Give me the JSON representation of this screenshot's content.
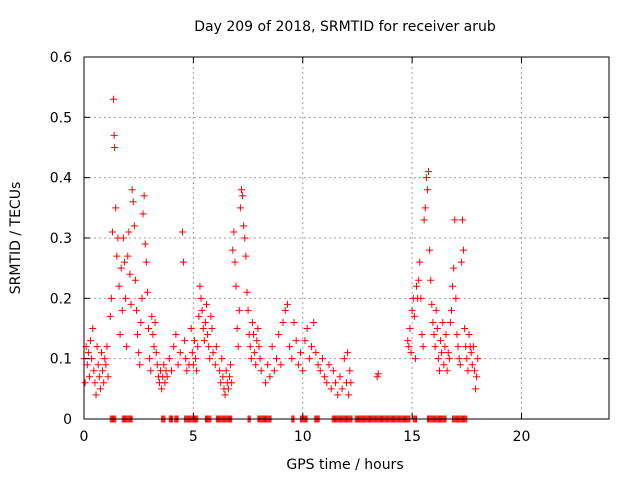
{
  "chart_data": {
    "type": "scatter",
    "title": "Day 209 of 2018, SRMTID for receiver arub",
    "xlabel": "GPS time / hours",
    "ylabel": "SRMTID / TECUs",
    "xlim": [
      0,
      24
    ],
    "ylim": [
      0,
      0.6
    ],
    "x_ticks": [
      "0",
      "5",
      "10",
      "15",
      "20"
    ],
    "y_ticks": [
      "0",
      "0.1",
      "0.2",
      "0.3",
      "0.4",
      "0.5",
      "0.6"
    ],
    "grid": true,
    "marker": "plus",
    "color": "#ff0000",
    "series": [
      {
        "name": "SRMTID",
        "points": [
          [
            0.0,
            0.1
          ],
          [
            0.05,
            0.06
          ],
          [
            0.1,
            0.12
          ],
          [
            0.15,
            0.09
          ],
          [
            0.2,
            0.11
          ],
          [
            0.25,
            0.07
          ],
          [
            0.3,
            0.13
          ],
          [
            0.35,
            0.1
          ],
          [
            0.4,
            0.15
          ],
          [
            0.45,
            0.08
          ],
          [
            0.5,
            0.06
          ],
          [
            0.55,
            0.04
          ],
          [
            0.6,
            0.12
          ],
          [
            0.65,
            0.09
          ],
          [
            0.7,
            0.07
          ],
          [
            0.75,
            0.05
          ],
          [
            0.8,
            0.11
          ],
          [
            0.85,
            0.08
          ],
          [
            0.9,
            0.06
          ],
          [
            0.95,
            0.1
          ],
          [
            1.0,
            0.09
          ],
          [
            1.05,
            0.12
          ],
          [
            1.1,
            0.07
          ],
          [
            1.2,
            0.17
          ],
          [
            1.25,
            0.2
          ],
          [
            1.3,
            0.31
          ],
          [
            1.35,
            0.53
          ],
          [
            1.38,
            0.47
          ],
          [
            1.4,
            0.45
          ],
          [
            1.45,
            0.35
          ],
          [
            1.5,
            0.27
          ],
          [
            1.55,
            0.3
          ],
          [
            1.6,
            0.22
          ],
          [
            1.65,
            0.14
          ],
          [
            1.7,
            0.25
          ],
          [
            1.75,
            0.18
          ],
          [
            1.8,
            0.3
          ],
          [
            1.85,
            0.26
          ],
          [
            1.9,
            0.2
          ],
          [
            1.95,
            0.12
          ],
          [
            2.0,
            0.27
          ],
          [
            2.05,
            0.31
          ],
          [
            2.1,
            0.24
          ],
          [
            2.15,
            0.19
          ],
          [
            2.2,
            0.38
          ],
          [
            2.25,
            0.36
          ],
          [
            2.3,
            0.32
          ],
          [
            2.35,
            0.23
          ],
          [
            2.4,
            0.18
          ],
          [
            2.45,
            0.14
          ],
          [
            2.5,
            0.11
          ],
          [
            2.55,
            0.09
          ],
          [
            2.6,
            0.16
          ],
          [
            2.65,
            0.2
          ],
          [
            2.7,
            0.34
          ],
          [
            2.75,
            0.37
          ],
          [
            2.8,
            0.29
          ],
          [
            2.85,
            0.26
          ],
          [
            2.9,
            0.21
          ],
          [
            2.95,
            0.15
          ],
          [
            3.0,
            0.1
          ],
          [
            3.05,
            0.08
          ],
          [
            3.1,
            0.17
          ],
          [
            3.15,
            0.14
          ],
          [
            3.2,
            0.12
          ],
          [
            3.25,
            0.16
          ],
          [
            3.3,
            0.11
          ],
          [
            3.35,
            0.09
          ],
          [
            3.4,
            0.07
          ],
          [
            3.45,
            0.06
          ],
          [
            3.5,
            0.08
          ],
          [
            3.55,
            0.05
          ],
          [
            3.6,
            0.07
          ],
          [
            3.65,
            0.09
          ],
          [
            3.7,
            0.06
          ],
          [
            3.75,
            0.08
          ],
          [
            3.8,
            0.07
          ],
          [
            3.9,
            0.1
          ],
          [
            4.0,
            0.08
          ],
          [
            4.1,
            0.12
          ],
          [
            4.2,
            0.14
          ],
          [
            4.3,
            0.09
          ],
          [
            4.4,
            0.11
          ],
          [
            4.5,
            0.31
          ],
          [
            4.55,
            0.26
          ],
          [
            4.6,
            0.13
          ],
          [
            4.65,
            0.1
          ],
          [
            4.7,
            0.08
          ],
          [
            4.8,
            0.09
          ],
          [
            4.9,
            0.15
          ],
          [
            4.95,
            0.11
          ],
          [
            5.0,
            0.09
          ],
          [
            5.05,
            0.13
          ],
          [
            5.1,
            0.1
          ],
          [
            5.15,
            0.08
          ],
          [
            5.2,
            0.12
          ],
          [
            5.25,
            0.17
          ],
          [
            5.3,
            0.22
          ],
          [
            5.35,
            0.2
          ],
          [
            5.4,
            0.18
          ],
          [
            5.45,
            0.15
          ],
          [
            5.5,
            0.13
          ],
          [
            5.55,
            0.16
          ],
          [
            5.6,
            0.19
          ],
          [
            5.65,
            0.14
          ],
          [
            5.7,
            0.12
          ],
          [
            5.75,
            0.1
          ],
          [
            5.8,
            0.17
          ],
          [
            5.85,
            0.15
          ],
          [
            5.9,
            0.11
          ],
          [
            6.0,
            0.09
          ],
          [
            6.05,
            0.12
          ],
          [
            6.2,
            0.08
          ],
          [
            6.25,
            0.06
          ],
          [
            6.3,
            0.1
          ],
          [
            6.35,
            0.07
          ],
          [
            6.4,
            0.05
          ],
          [
            6.45,
            0.04
          ],
          [
            6.5,
            0.08
          ],
          [
            6.55,
            0.06
          ],
          [
            6.6,
            0.05
          ],
          [
            6.65,
            0.07
          ],
          [
            6.7,
            0.09
          ],
          [
            6.75,
            0.06
          ],
          [
            6.8,
            0.28
          ],
          [
            6.85,
            0.31
          ],
          [
            6.9,
            0.26
          ],
          [
            6.95,
            0.22
          ],
          [
            7.0,
            0.15
          ],
          [
            7.05,
            0.12
          ],
          [
            7.1,
            0.18
          ],
          [
            7.15,
            0.35
          ],
          [
            7.2,
            0.38
          ],
          [
            7.25,
            0.37
          ],
          [
            7.3,
            0.32
          ],
          [
            7.35,
            0.3
          ],
          [
            7.4,
            0.27
          ],
          [
            7.45,
            0.21
          ],
          [
            7.5,
            0.18
          ],
          [
            7.55,
            0.14
          ],
          [
            7.6,
            0.12
          ],
          [
            7.65,
            0.1
          ],
          [
            7.7,
            0.16
          ],
          [
            7.75,
            0.14
          ],
          [
            7.8,
            0.11
          ],
          [
            7.85,
            0.09
          ],
          [
            7.9,
            0.13
          ],
          [
            7.95,
            0.15
          ],
          [
            8.0,
            0.12
          ],
          [
            8.05,
            0.1
          ],
          [
            8.1,
            0.08
          ],
          [
            8.3,
            0.06
          ],
          [
            8.4,
            0.09
          ],
          [
            8.5,
            0.07
          ],
          [
            8.6,
            0.12
          ],
          [
            8.7,
            0.08
          ],
          [
            8.8,
            0.1
          ],
          [
            8.9,
            0.14
          ],
          [
            9.0,
            0.09
          ],
          [
            9.1,
            0.16
          ],
          [
            9.2,
            0.18
          ],
          [
            9.3,
            0.19
          ],
          [
            9.4,
            0.12
          ],
          [
            9.5,
            0.1
          ],
          [
            9.6,
            0.16
          ],
          [
            9.7,
            0.13
          ],
          [
            9.8,
            0.09
          ],
          [
            9.9,
            0.11
          ],
          [
            10.0,
            0.08
          ],
          [
            10.1,
            0.13
          ],
          [
            10.2,
            0.15
          ],
          [
            10.3,
            0.1
          ],
          [
            10.4,
            0.12
          ],
          [
            10.5,
            0.16
          ],
          [
            10.6,
            0.11
          ],
          [
            10.7,
            0.09
          ],
          [
            10.8,
            0.08
          ],
          [
            10.9,
            0.1
          ],
          [
            11.0,
            0.07
          ],
          [
            11.1,
            0.06
          ],
          [
            11.2,
            0.09
          ],
          [
            11.3,
            0.05
          ],
          [
            11.4,
            0.08
          ],
          [
            11.5,
            0.06
          ],
          [
            11.6,
            0.04
          ],
          [
            11.7,
            0.07
          ],
          [
            11.8,
            0.05
          ],
          [
            11.9,
            0.1
          ],
          [
            12.0,
            0.06
          ],
          [
            12.05,
            0.11
          ],
          [
            12.1,
            0.04
          ],
          [
            12.15,
            0.08
          ],
          [
            12.2,
            0.06
          ],
          [
            13.4,
            0.07
          ],
          [
            13.45,
            0.075
          ],
          [
            14.8,
            0.13
          ],
          [
            14.85,
            0.12
          ],
          [
            14.9,
            0.15
          ],
          [
            14.95,
            0.11
          ],
          [
            15.0,
            0.18
          ],
          [
            15.05,
            0.2
          ],
          [
            15.1,
            0.17
          ],
          [
            15.15,
            0.1
          ],
          [
            15.2,
            0.22
          ],
          [
            15.25,
            0.2
          ],
          [
            15.3,
            0.23
          ],
          [
            15.35,
            0.26
          ],
          [
            15.4,
            0.2
          ],
          [
            15.45,
            0.14
          ],
          [
            15.5,
            0.12
          ],
          [
            15.55,
            0.33
          ],
          [
            15.6,
            0.35
          ],
          [
            15.65,
            0.4
          ],
          [
            15.7,
            0.38
          ],
          [
            15.75,
            0.41
          ],
          [
            15.8,
            0.28
          ],
          [
            15.85,
            0.23
          ],
          [
            15.9,
            0.19
          ],
          [
            15.95,
            0.16
          ],
          [
            16.0,
            0.14
          ],
          [
            16.05,
            0.12
          ],
          [
            16.1,
            0.18
          ],
          [
            16.15,
            0.15
          ],
          [
            16.2,
            0.1
          ],
          [
            16.25,
            0.08
          ],
          [
            16.3,
            0.13
          ],
          [
            16.35,
            0.11
          ],
          [
            16.4,
            0.16
          ],
          [
            16.45,
            0.09
          ],
          [
            16.5,
            0.12
          ],
          [
            16.55,
            0.14
          ],
          [
            16.6,
            0.08
          ],
          [
            16.65,
            0.11
          ],
          [
            16.7,
            0.1
          ],
          [
            16.75,
            0.16
          ],
          [
            16.8,
            0.18
          ],
          [
            16.85,
            0.22
          ],
          [
            16.9,
            0.25
          ],
          [
            16.95,
            0.33
          ],
          [
            17.0,
            0.2
          ],
          [
            17.05,
            0.14
          ],
          [
            17.1,
            0.12
          ],
          [
            17.15,
            0.1
          ],
          [
            17.2,
            0.09
          ],
          [
            17.25,
            0.26
          ],
          [
            17.3,
            0.33
          ],
          [
            17.35,
            0.28
          ],
          [
            17.4,
            0.15
          ],
          [
            17.45,
            0.12
          ],
          [
            17.5,
            0.1
          ],
          [
            17.55,
            0.08
          ],
          [
            17.6,
            0.14
          ],
          [
            17.65,
            0.12
          ],
          [
            17.7,
            0.11
          ],
          [
            17.75,
            0.09
          ],
          [
            17.8,
            0.12
          ],
          [
            17.85,
            0.08
          ],
          [
            17.9,
            0.05
          ],
          [
            17.95,
            0.07
          ],
          [
            18.0,
            0.1
          ]
        ],
        "zero_band": [
          [
            1.2,
            1.45
          ],
          [
            1.75,
            2.2
          ],
          [
            3.55,
            3.7
          ],
          [
            3.9,
            4.05
          ],
          [
            4.15,
            4.3
          ],
          [
            4.6,
            5.2
          ],
          [
            5.55,
            5.8
          ],
          [
            6.05,
            6.75
          ],
          [
            7.5,
            7.6
          ],
          [
            7.95,
            8.55
          ],
          [
            9.5,
            9.6
          ],
          [
            9.9,
            10.2
          ],
          [
            10.55,
            10.75
          ],
          [
            11.35,
            12.25
          ],
          [
            12.4,
            14.9
          ],
          [
            15.05,
            15.2
          ],
          [
            15.7,
            16.55
          ],
          [
            16.85,
            17.5
          ]
        ]
      }
    ]
  }
}
